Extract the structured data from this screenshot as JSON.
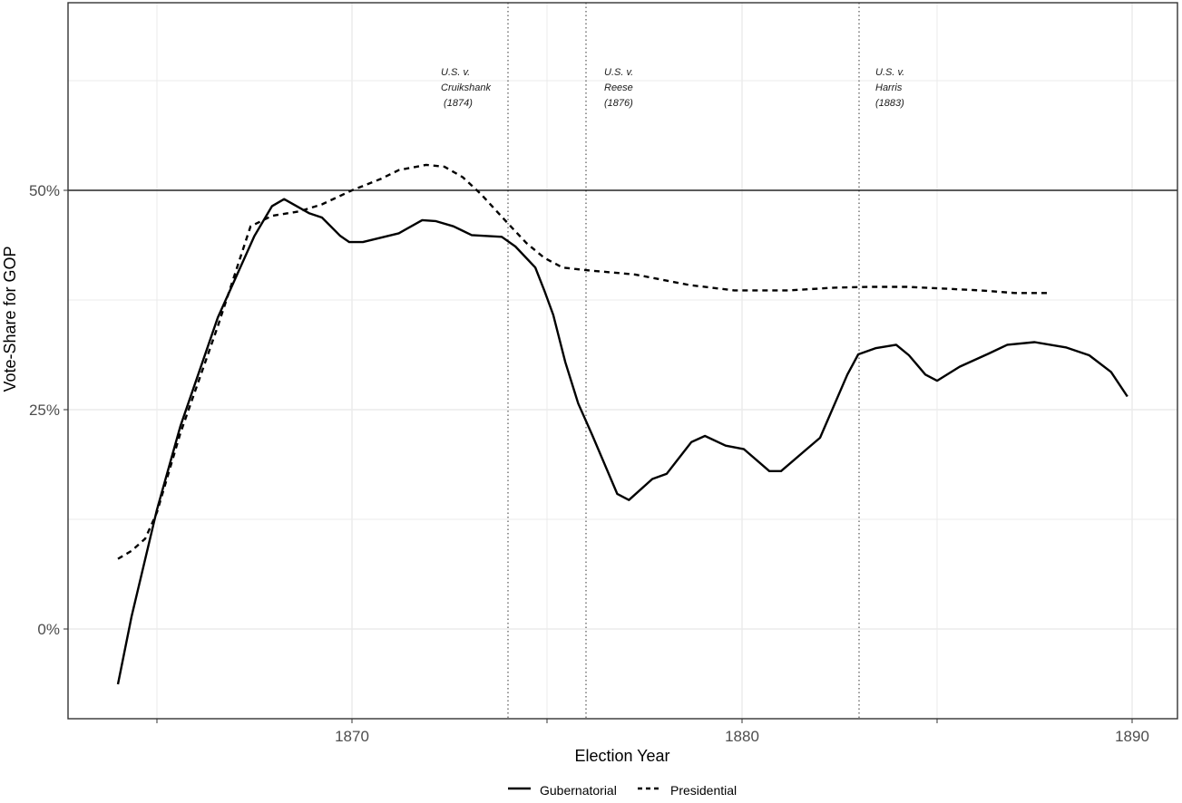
{
  "chart_data": {
    "type": "line",
    "title": "",
    "xlabel": "Election Year",
    "ylabel": "Vote-Share for GOP",
    "xlim": [
      1861.5,
      1891.2
    ],
    "ylim": [
      -9.9,
      71.7
    ],
    "x_ticks": [
      1870,
      1880,
      1890
    ],
    "x_tick_labels": [
      "1870",
      "1880",
      "1890"
    ],
    "x_minor_ticks": [
      1865,
      1875,
      1885
    ],
    "y_ticks": [
      0,
      25,
      50
    ],
    "y_tick_labels": [
      "0%",
      "25%",
      "50%"
    ],
    "y_minor_ticks": [
      12.5,
      37.5,
      62.5
    ],
    "grid": true,
    "reference_line": {
      "y": 50,
      "style": "solid"
    },
    "vertical_lines": [
      {
        "x": 1874,
        "style": "dotted",
        "label": [
          "U.S. v.",
          "Cruikshank",
          " (1874)"
        ]
      },
      {
        "x": 1876,
        "style": "dotted",
        "label": [
          "U.S. v.",
          "Reese",
          "(1876)"
        ]
      },
      {
        "x": 1883,
        "style": "dotted",
        "label": [
          "U.S. v.",
          "Harris",
          "(1883)"
        ]
      }
    ],
    "legend_position": "bottom",
    "series": [
      {
        "name": "Gubernatorial",
        "linestyle": "solid",
        "x": [
          1864.0,
          1864.35,
          1865.0,
          1865.6,
          1866.56,
          1867.5,
          1867.95,
          1868.26,
          1868.9,
          1869.23,
          1869.7,
          1869.93,
          1870.28,
          1871.2,
          1871.8,
          1872.14,
          1872.6,
          1873.07,
          1873.84,
          1874.19,
          1874.7,
          1874.93,
          1875.16,
          1875.47,
          1875.8,
          1876.16,
          1876.8,
          1877.1,
          1877.7,
          1878.07,
          1878.7,
          1879.05,
          1879.58,
          1880.05,
          1880.7,
          1881.0,
          1882.0,
          1882.7,
          1882.98,
          1883.42,
          1883.95,
          1884.28,
          1884.7,
          1885.0,
          1885.58,
          1886.33,
          1886.8,
          1887.5,
          1888.3,
          1888.9,
          1889.46,
          1889.88
        ],
        "values": [
          -6.3,
          1.4,
          13.6,
          23.1,
          35.5,
          44.8,
          48.2,
          49.0,
          47.4,
          46.9,
          44.8,
          44.1,
          44.1,
          45.1,
          46.6,
          46.5,
          45.9,
          44.9,
          44.7,
          43.6,
          41.2,
          38.6,
          35.8,
          30.4,
          25.7,
          22.1,
          15.4,
          14.7,
          17.1,
          17.7,
          21.3,
          22.0,
          20.9,
          20.5,
          18.0,
          18.0,
          21.8,
          29.0,
          31.3,
          32.0,
          32.4,
          31.2,
          29.0,
          28.3,
          29.9,
          31.4,
          32.4,
          32.7,
          32.1,
          31.2,
          29.3,
          26.5
        ]
      },
      {
        "name": "Presidential",
        "linestyle": "dashed",
        "x": [
          1864.0,
          1864.35,
          1864.7,
          1865.0,
          1865.6,
          1866.56,
          1867.4,
          1867.95,
          1868.65,
          1869.23,
          1870.0,
          1870.74,
          1871.2,
          1871.9,
          1872.37,
          1872.84,
          1873.3,
          1873.9,
          1874.47,
          1874.93,
          1875.4,
          1876.0,
          1877.26,
          1878.65,
          1879.8,
          1881.2,
          1882.37,
          1883.3,
          1884.23,
          1885.16,
          1886.1,
          1887.0,
          1887.86
        ],
        "values": [
          8.0,
          8.9,
          10.3,
          13.3,
          22.3,
          34.5,
          45.9,
          47.1,
          47.6,
          48.4,
          50.0,
          51.3,
          52.3,
          52.9,
          52.7,
          51.5,
          49.6,
          46.7,
          44.0,
          42.3,
          41.2,
          40.9,
          40.4,
          39.2,
          38.6,
          38.6,
          38.9,
          39.0,
          39.0,
          38.8,
          38.6,
          38.3,
          38.3
        ]
      }
    ]
  },
  "axes": {
    "x_title": "Election Year",
    "y_title": "Vote-Share for GOP",
    "x_tick_labels": [
      "1870",
      "1880",
      "1890"
    ],
    "y_tick_labels": [
      "50%",
      "25%",
      "0%"
    ]
  },
  "annotations": {
    "cruikshank": {
      "line1": "U.S. v.",
      "line2": "Cruikshank",
      "line3": " (1874)"
    },
    "reese": {
      "line1": "U.S. v.",
      "line2": "Reese",
      "line3": "(1876)"
    },
    "harris": {
      "line1": "U.S. v.",
      "line2": "Harris",
      "line3": "(1883)"
    }
  },
  "legend": {
    "items": [
      {
        "label": "Gubernatorial",
        "linestyle": "solid"
      },
      {
        "label": "Presidential",
        "linestyle": "dashed"
      }
    ]
  },
  "colors": {
    "line": "#000000",
    "grid": "#ebebeb",
    "panel_border": "#333333",
    "tick_text": "#4d4d4d"
  }
}
